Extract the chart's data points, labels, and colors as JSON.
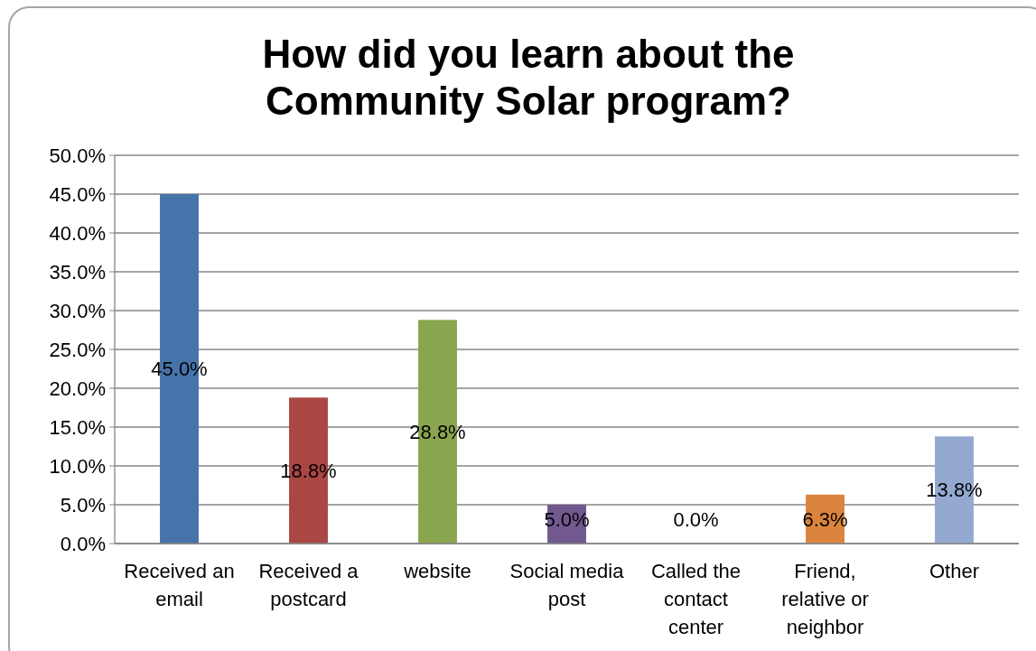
{
  "chart_data": {
    "type": "bar",
    "title": "How did you learn about the Community Solar program?",
    "categories": [
      "Received an email",
      "Received a postcard",
      "website",
      "Social media post",
      "Called the contact center",
      "Friend, relative or neighbor",
      "Other"
    ],
    "values": [
      45.0,
      18.8,
      28.8,
      5.0,
      0.0,
      6.3,
      13.8
    ],
    "colors": [
      "#4674aa",
      "#aa4643",
      "#89a54e",
      "#71588f",
      "#4198af",
      "#db843d",
      "#93a9cf"
    ],
    "value_labels": [
      "45.0%",
      "18.8%",
      "28.8%",
      "5.0%",
      "0.0%",
      "6.3%",
      "13.8%"
    ],
    "ylim": [
      0,
      50
    ],
    "yticks": [
      {
        "value": 0,
        "label": "0.0%"
      },
      {
        "value": 5,
        "label": "5.0%"
      },
      {
        "value": 10,
        "label": "10.0%"
      },
      {
        "value": 15,
        "label": "15.0%"
      },
      {
        "value": 20,
        "label": "20.0%"
      },
      {
        "value": 25,
        "label": "25.0%"
      },
      {
        "value": 30,
        "label": "30.0%"
      },
      {
        "value": 35,
        "label": "35.0%"
      },
      {
        "value": 40,
        "label": "40.0%"
      },
      {
        "value": 45,
        "label": "45.0%"
      },
      {
        "value": 50,
        "label": "50.0%"
      }
    ],
    "grid": "y"
  }
}
